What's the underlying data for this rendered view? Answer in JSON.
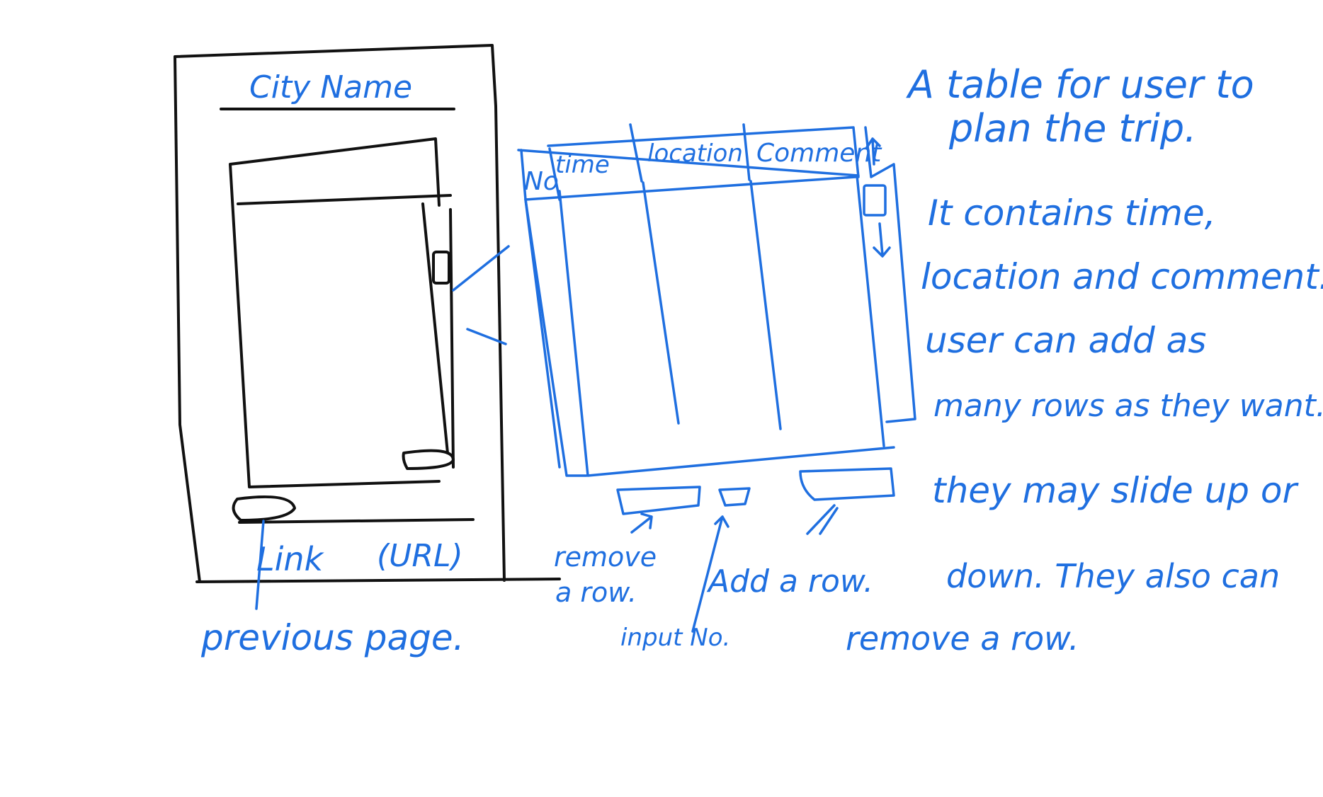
{
  "phone": {
    "city_label": "City Name",
    "link_label": "Link",
    "url_label": "(URL)"
  },
  "table": {
    "headers": [
      "No",
      "time",
      "location",
      "Comment"
    ]
  },
  "callouts": {
    "remove_row": [
      "remove",
      "a row."
    ],
    "input_no": "input No.",
    "add_row": "Add a row.",
    "previous_page": "previous page."
  },
  "notes": [
    "A table for user to",
    "plan the trip.",
    "It contains time,",
    "location and comment.",
    "user can add as",
    "many rows as they want.",
    "they may slide up or",
    "down. They also can",
    "remove a row."
  ],
  "colors": {
    "pencil": "#111111",
    "pen": "#1f6fe0",
    "paper": "#ffffff"
  }
}
